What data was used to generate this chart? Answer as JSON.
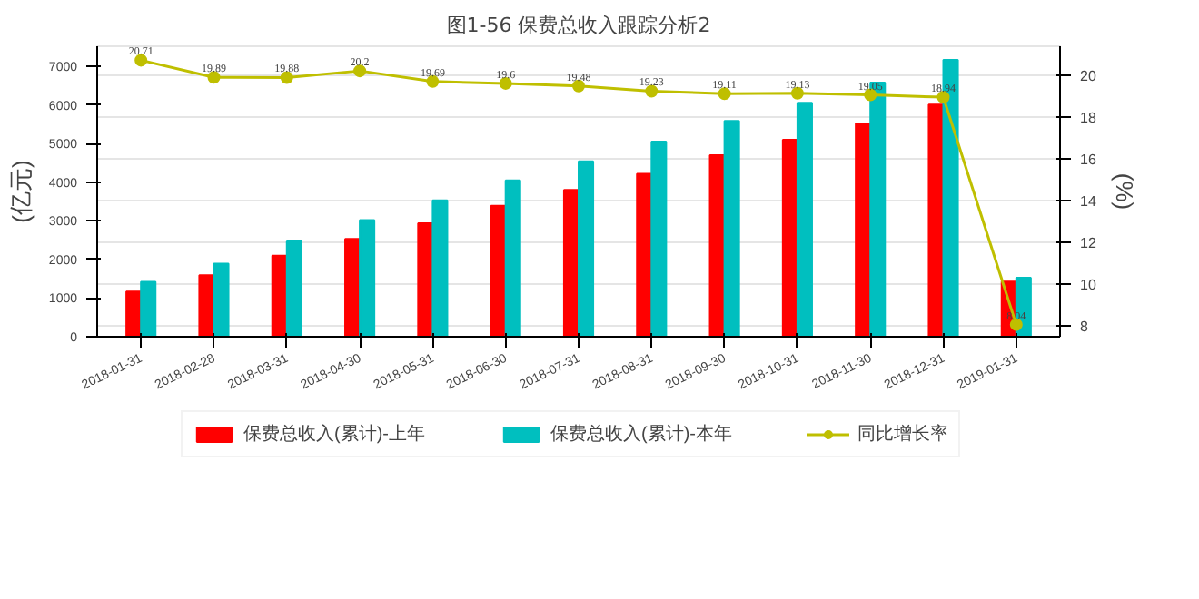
{
  "chart_data": {
    "type": "bar",
    "title": "图1-56 保费总收入跟踪分析2",
    "ylabel": "(亿元)",
    "y2label": "(%)",
    "categories": [
      "2018-01-31",
      "2018-02-28",
      "2018-03-31",
      "2018-04-30",
      "2018-05-31",
      "2018-06-30",
      "2018-07-31",
      "2018-08-31",
      "2018-09-30",
      "2018-10-31",
      "2018-11-30",
      "2018-12-31",
      "2019-01-31"
    ],
    "series": [
      {
        "name": "保费总收入(累计)-上年",
        "color": "#ff0000",
        "values": [
          1170,
          1590,
          2100,
          2530,
          2940,
          3390,
          3800,
          4220,
          4700,
          5100,
          5520,
          6010,
          1430
        ]
      },
      {
        "name": "保费总收入(累计)-本年",
        "color": "#00bfbf",
        "values": [
          1420,
          1890,
          2490,
          3020,
          3530,
          4050,
          4540,
          5050,
          5590,
          6060,
          6580,
          7170,
          1530
        ]
      },
      {
        "name": "同比增长率",
        "type": "line",
        "axis": "y2",
        "color": "#bfbf00",
        "marker": "circle",
        "data_labels": true,
        "values": [
          20.71,
          19.89,
          19.88,
          20.2,
          19.69,
          19.6,
          19.48,
          19.23,
          19.11,
          19.13,
          19.05,
          18.94,
          8.04
        ]
      }
    ],
    "ylim": [
      0,
      7520
    ],
    "yticks": [
      0,
      1000,
      2000,
      3000,
      4000,
      5000,
      6000,
      7000
    ],
    "y2lim": [
      7.46,
      21.38
    ],
    "y2ticks": [
      8,
      10,
      12,
      14,
      16,
      18,
      20
    ],
    "grid": "y",
    "legend": "bottom"
  }
}
